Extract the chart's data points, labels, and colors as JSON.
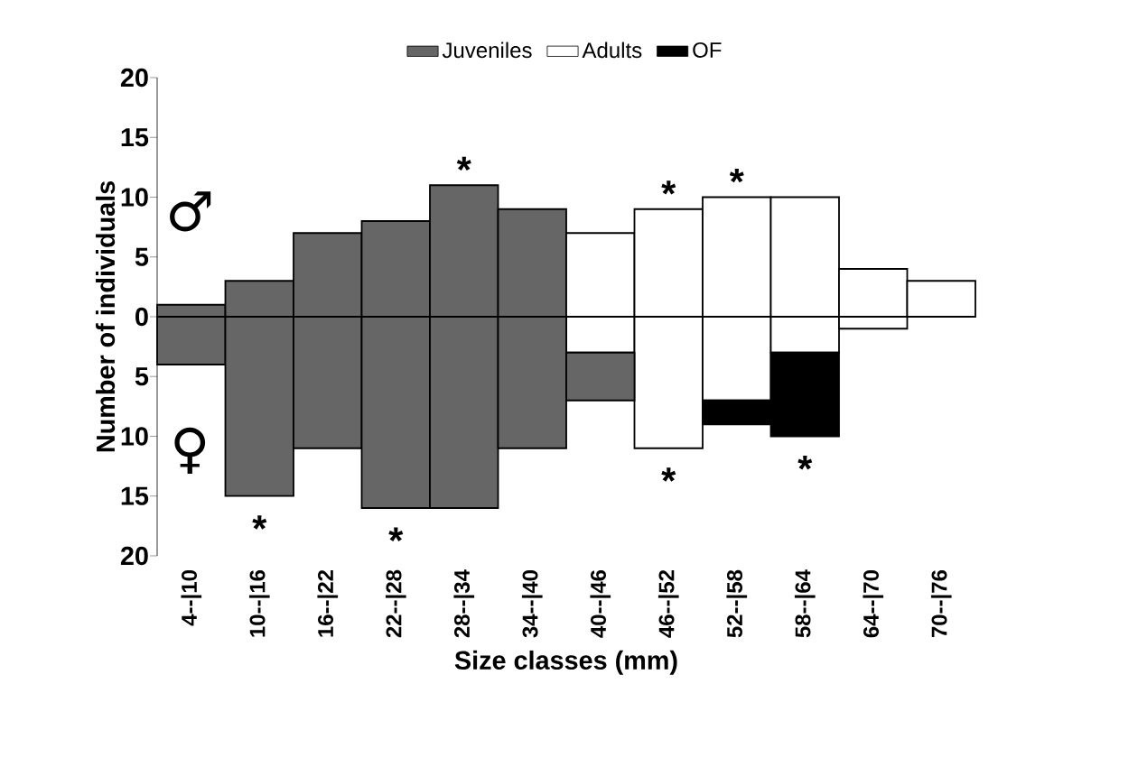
{
  "chart_data": {
    "type": "bar",
    "stacked": true,
    "xlabel": "Size classes (mm)",
    "ylabel": "Number of individuals",
    "categories": [
      "4--|10",
      "10--|16",
      "16--|22",
      "22--|28",
      "28--|34",
      "34--|40",
      "40--|46",
      "46--|52",
      "52--|58",
      "58--|64",
      "64--|70",
      "70--|76"
    ],
    "series": [
      {
        "name": "Juveniles",
        "color": "#666666",
        "values": [
          1,
          3,
          7,
          8,
          11,
          9,
          null,
          null,
          null,
          null,
          null,
          null
        ]
      },
      {
        "name": "Adults",
        "color": "#ffffff",
        "values": [
          null,
          null,
          null,
          null,
          null,
          null,
          7,
          9,
          10,
          10,
          4,
          3
        ]
      },
      {
        "color": "#ffffff",
        "values": [
          null,
          null,
          null,
          null,
          null,
          null,
          -3,
          -11,
          -7,
          -3,
          -1,
          null
        ]
      },
      {
        "color": "#666666",
        "values": [
          -4,
          -15,
          -11,
          -16,
          -16,
          -11,
          -4,
          null,
          null,
          null,
          null,
          null
        ]
      },
      {
        "name": "OF",
        "color": "#000000",
        "values": [
          null,
          null,
          null,
          null,
          null,
          null,
          null,
          null,
          -2,
          -7,
          null,
          null
        ]
      }
    ],
    "ylim": [
      -20,
      20
    ],
    "yticks": [
      {
        "value": -20,
        "label": "20"
      },
      {
        "value": -15,
        "label": "15"
      },
      {
        "value": -10,
        "label": "10"
      },
      {
        "value": -5,
        "label": "5"
      },
      0,
      5,
      10,
      15,
      20
    ],
    "legend": "top",
    "annotations": [
      "♂",
      "♀",
      "*",
      "*",
      "*",
      "*",
      "*",
      "*",
      "*"
    ]
  }
}
